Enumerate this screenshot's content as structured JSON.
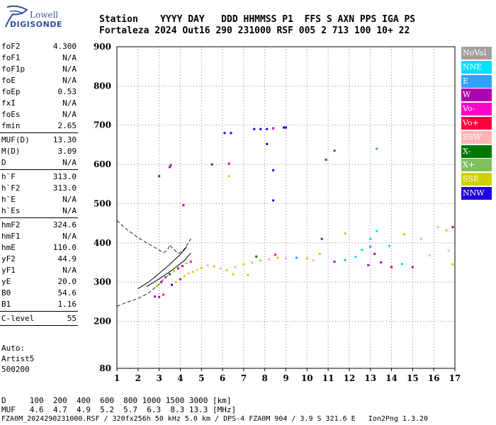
{
  "logo": {
    "line1": "Lowell",
    "line2": "DIGISONDE"
  },
  "header": {
    "line1": "Station    YYYY DAY   DDD HHMMSS P1  FFS S AXN PPS IGA PS",
    "line2": "Fortaleza 2024 Out16 290 231000 RSF 005 2 713 100 10+ 22"
  },
  "params": [
    {
      "k": "foF2",
      "v": "4.300"
    },
    {
      "k": "foF1",
      "v": "N/A"
    },
    {
      "k": "foF1p",
      "v": "N/A"
    },
    {
      "k": "foE",
      "v": "N/A"
    },
    {
      "k": "foEp",
      "v": "0.53"
    },
    {
      "k": "fxI",
      "v": "N/A"
    },
    {
      "k": "foEs",
      "v": "N/A"
    },
    {
      "k": "fmin",
      "v": "2.65"
    },
    {
      "sep": true
    },
    {
      "k": "MUF(D)",
      "v": "13.30"
    },
    {
      "k": "M(D)",
      "v": "3.09"
    },
    {
      "k": "D",
      "v": "N/A"
    },
    {
      "sep": true
    },
    {
      "k": "h`F",
      "v": "313.0"
    },
    {
      "k": "h`F2",
      "v": "313.0"
    },
    {
      "k": "h`E",
      "v": "N/A"
    },
    {
      "k": "h`Es",
      "v": "N/A"
    },
    {
      "sep": true
    },
    {
      "k": "hmF2",
      "v": "324.6"
    },
    {
      "k": "hmF1",
      "v": "N/A"
    },
    {
      "k": "hmE",
      "v": "110.0"
    },
    {
      "k": "yF2",
      "v": "44.9"
    },
    {
      "k": "yF1",
      "v": "N/A"
    },
    {
      "k": "yE",
      "v": "20.0"
    },
    {
      "k": "B0",
      "v": "54.6"
    },
    {
      "k": "B1",
      "v": "1.16"
    },
    {
      "sep": true
    },
    {
      "k": "C-level",
      "v": "55"
    },
    {
      "sep": true
    }
  ],
  "auto": {
    "line1": "Auto:",
    "line2": "Artist5",
    "line3": "500200"
  },
  "legend": [
    {
      "label": "NoVal",
      "color": "#a0a0a0"
    },
    {
      "label": "NNE",
      "color": "#00e0ff"
    },
    {
      "label": "E",
      "color": "#30a0ff"
    },
    {
      "label": "W",
      "color": "#b000b0"
    },
    {
      "label": "Vo-",
      "color": "#ff00c8"
    },
    {
      "label": "Vo+",
      "color": "#ff0040"
    },
    {
      "label": "SSW",
      "color": "#ffb4b4"
    },
    {
      "label": "X-",
      "color": "#007800"
    },
    {
      "label": "X+",
      "color": "#80c060"
    },
    {
      "label": "SSE",
      "color": "#d0d000"
    },
    {
      "label": "NNW",
      "color": "#2000e0"
    }
  ],
  "footer": {
    "line1": "D     100  200  400  600  800 1000 1500 3000 [km]",
    "line2": "MUF   4.6  4.7  4.9  5.2  5.7  6.3  8.3 13.3 [MHz]",
    "line3": "FZA0M_2024290231000.RSF / 320fx256h 50 kHz 5.0 km / DPS-4 FZA0M 904 / 3.9 S 321.6 E   Ion2Png 1.3.20"
  },
  "chart_data": {
    "type": "scatter",
    "xlim": [
      1,
      17
    ],
    "ylim": [
      80,
      900
    ],
    "x_ticks": [
      1,
      2,
      3,
      4,
      5,
      6,
      7,
      8,
      9,
      10,
      11,
      12,
      13,
      14,
      15,
      16,
      17
    ],
    "y_ticks": [
      80,
      200,
      300,
      400,
      500,
      600,
      700,
      800,
      900
    ],
    "grid": true,
    "legend_position": "right",
    "points": [
      [
        3.0,
        570,
        "W"
      ],
      [
        3.5,
        593,
        "W"
      ],
      [
        3.55,
        598,
        "W"
      ],
      [
        4.15,
        496,
        "W"
      ],
      [
        5.5,
        600,
        "W"
      ],
      [
        6.3,
        602,
        "Vo+"
      ],
      [
        6.1,
        680,
        "NNW"
      ],
      [
        6.4,
        680,
        "NNW"
      ],
      [
        7.5,
        690,
        "NNW"
      ],
      [
        7.8,
        690,
        "NNW"
      ],
      [
        8.1,
        690,
        "NNW"
      ],
      [
        8.4,
        692,
        "W"
      ],
      [
        8.9,
        694,
        "NNW"
      ],
      [
        9.0,
        694,
        "NNW"
      ],
      [
        8.1,
        652,
        "NNW"
      ],
      [
        8.4,
        585,
        "NNW"
      ],
      [
        8.4,
        508,
        "NNW"
      ],
      [
        10.9,
        612,
        "X-"
      ],
      [
        11.3,
        635,
        "X-"
      ],
      [
        13.3,
        640,
        "E"
      ],
      [
        6.3,
        570,
        "SSE"
      ],
      [
        2.8,
        263,
        "W"
      ],
      [
        3.0,
        262,
        "W"
      ],
      [
        3.2,
        268,
        "Vo-"
      ],
      [
        2.9,
        290,
        "SSE"
      ],
      [
        3.1,
        300,
        "W"
      ],
      [
        3.3,
        312,
        "Vo-"
      ],
      [
        3.5,
        320,
        "X-"
      ],
      [
        3.7,
        328,
        "SSE"
      ],
      [
        3.9,
        335,
        "Vo+"
      ],
      [
        4.1,
        341,
        "W"
      ],
      [
        4.3,
        348,
        "SSE"
      ],
      [
        4.5,
        352,
        "Vo-"
      ],
      [
        3.6,
        293,
        "NNW"
      ],
      [
        3.8,
        300,
        "SSE"
      ],
      [
        4.0,
        307,
        "W"
      ],
      [
        4.2,
        315,
        "SSE"
      ],
      [
        4.4,
        322,
        "SSW"
      ],
      [
        4.6,
        326,
        "SSE"
      ],
      [
        4.8,
        331,
        "SSW"
      ],
      [
        5.0,
        336,
        "SSE"
      ],
      [
        5.3,
        342,
        "SSW"
      ],
      [
        5.6,
        340,
        "SSE"
      ],
      [
        5.9,
        335,
        "SSW"
      ],
      [
        6.2,
        330,
        "SSE"
      ],
      [
        6.6,
        338,
        "SSW"
      ],
      [
        7.0,
        345,
        "SSE"
      ],
      [
        7.4,
        350,
        "SSW"
      ],
      [
        7.8,
        355,
        "SSE"
      ],
      [
        8.2,
        358,
        "SSW"
      ],
      [
        8.6,
        362,
        "SSE"
      ],
      [
        9.0,
        360,
        "SSW"
      ],
      [
        7.6,
        365,
        "X-"
      ],
      [
        8.5,
        370,
        "Vo-"
      ],
      [
        9.5,
        362,
        "E"
      ],
      [
        10.0,
        360,
        "SSE"
      ],
      [
        10.3,
        355,
        "SSW"
      ],
      [
        10.6,
        372,
        "SSE"
      ],
      [
        11.3,
        352,
        "W"
      ],
      [
        11.8,
        356,
        "E"
      ],
      [
        12.3,
        364,
        "NNE"
      ],
      [
        12.6,
        382,
        "NNE"
      ],
      [
        13.0,
        410,
        "NNE"
      ],
      [
        13.3,
        430,
        "NNE"
      ],
      [
        13.0,
        390,
        "E"
      ],
      [
        13.2,
        372,
        "W"
      ],
      [
        13.5,
        350,
        "W"
      ],
      [
        14.0,
        338,
        "W"
      ],
      [
        14.5,
        346,
        "NNE"
      ],
      [
        15.0,
        338,
        "W"
      ],
      [
        15.4,
        410,
        "SSW"
      ],
      [
        16.2,
        440,
        "SSW"
      ],
      [
        16.6,
        432,
        "SSE"
      ],
      [
        16.9,
        440,
        "W"
      ],
      [
        16.7,
        380,
        "SSW"
      ],
      [
        16.9,
        345,
        "SSE"
      ],
      [
        13.9,
        392,
        "NNE"
      ],
      [
        14.6,
        422,
        "SSE"
      ],
      [
        15.8,
        368,
        "SSW"
      ],
      [
        12.9,
        343,
        "W"
      ],
      [
        10.7,
        410,
        "X-"
      ],
      [
        11.8,
        424,
        "SSE"
      ],
      [
        6.5,
        320,
        "SSE"
      ],
      [
        7.2,
        318,
        "SSE"
      ]
    ],
    "dashed_curve": [
      [
        1.0,
        457
      ],
      [
        1.4,
        437
      ],
      [
        2.0,
        413
      ],
      [
        2.8,
        388
      ],
      [
        3.2,
        375
      ],
      [
        3.4,
        382
      ],
      [
        3.5,
        395
      ],
      [
        3.6,
        388
      ],
      [
        3.9,
        373
      ],
      [
        4.1,
        378
      ],
      [
        4.3,
        393
      ],
      [
        4.5,
        410
      ]
    ],
    "dashed_curve_lower": [
      [
        1.0,
        238
      ],
      [
        1.5,
        249
      ],
      [
        2.0,
        258
      ],
      [
        2.5,
        272
      ],
      [
        3.0,
        295
      ],
      [
        3.3,
        312
      ],
      [
        3.5,
        320
      ]
    ],
    "trace_lines": [
      [
        [
          2.0,
          283
        ],
        [
          2.5,
          300
        ],
        [
          3.0,
          322
        ],
        [
          3.5,
          345
        ],
        [
          4.0,
          370
        ],
        [
          4.3,
          390
        ]
      ],
      [
        [
          2.4,
          288
        ],
        [
          3.0,
          308
        ],
        [
          3.6,
          330
        ],
        [
          4.2,
          355
        ],
        [
          4.5,
          374
        ]
      ]
    ]
  }
}
